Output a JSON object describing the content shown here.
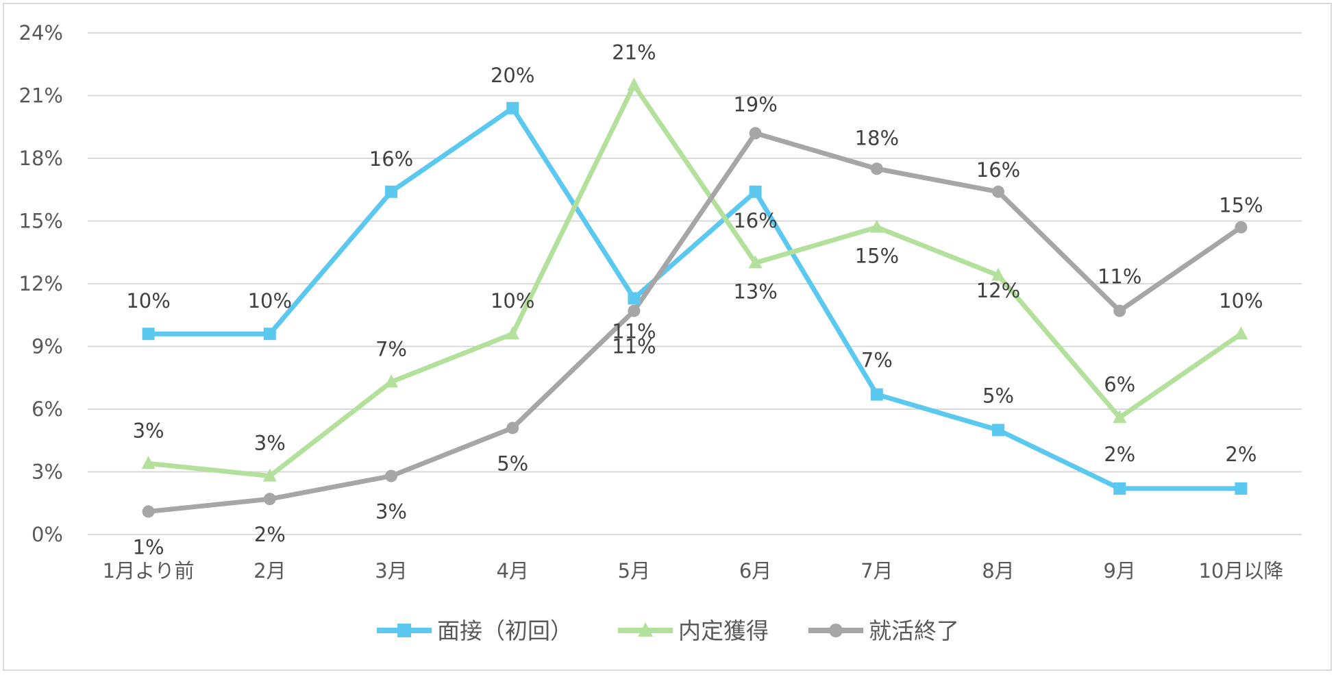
{
  "chart_data": {
    "type": "line",
    "categories": [
      "1月より前",
      "2月",
      "3月",
      "4月",
      "5月",
      "6月",
      "7月",
      "8月",
      "9月",
      "10月以降"
    ],
    "ylim": [
      0,
      24
    ],
    "yticks": [
      0,
      3,
      6,
      9,
      12,
      15,
      18,
      21,
      24
    ],
    "ytick_labels": [
      "0%",
      "3%",
      "6%",
      "9%",
      "12%",
      "15%",
      "18%",
      "21%",
      "24%"
    ],
    "grid": true,
    "legend_position": "bottom",
    "series": [
      {
        "name": "面接（初回）",
        "color": "#5bc8f0",
        "marker": "square",
        "values": [
          9.6,
          9.6,
          16.4,
          20.4,
          11.3,
          16.4,
          6.7,
          5.0,
          2.2,
          2.2
        ],
        "labels": [
          "10%",
          "10%",
          "16%",
          "20%",
          "11%",
          "16%",
          "7%",
          "5%",
          "2%",
          "2%"
        ]
      },
      {
        "name": "内定獲得",
        "color": "#b3e19c",
        "marker": "triangle",
        "values": [
          3.4,
          2.8,
          7.3,
          9.6,
          21.5,
          13.0,
          14.7,
          12.4,
          5.6,
          9.6
        ],
        "labels": [
          "3%",
          "3%",
          "7%",
          "10%",
          "21%",
          "13%",
          "15%",
          "12%",
          "6%",
          "10%"
        ]
      },
      {
        "name": "就活終了",
        "color": "#a6a6a6",
        "marker": "circle",
        "values": [
          1.1,
          1.7,
          2.8,
          5.1,
          10.7,
          19.2,
          17.5,
          16.4,
          10.7,
          14.7
        ],
        "labels": [
          "1%",
          "2%",
          "3%",
          "5%",
          "11%",
          "19%",
          "18%",
          "16%",
          "11%",
          "15%"
        ]
      }
    ]
  }
}
